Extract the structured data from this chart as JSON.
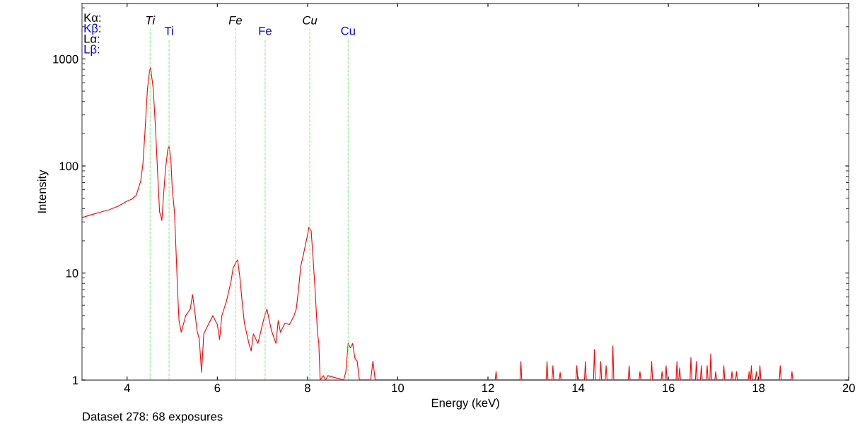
{
  "chart_data": {
    "type": "line",
    "xlabel": "Energy (keV)",
    "ylabel": "Intensity",
    "log": "y",
    "xlim": [
      3,
      20
    ],
    "ylim": [
      1,
      3300
    ],
    "xticks": [
      4,
      6,
      8,
      10,
      12,
      14,
      16,
      18,
      20
    ],
    "yticks": [
      1,
      10,
      100,
      1000
    ],
    "grid": false,
    "marker": "none",
    "line_style": "solid",
    "series": [
      {
        "color": "#ff0000",
        "x": [
          3.0,
          3.2,
          3.4,
          3.6,
          3.8,
          4.0,
          4.1,
          4.2,
          4.3,
          4.35,
          4.4,
          4.45,
          4.5,
          4.52,
          4.58,
          4.63,
          4.68,
          4.72,
          4.75,
          4.77,
          4.8,
          4.85,
          4.9,
          4.93,
          4.97,
          5.0,
          5.05,
          5.08,
          5.12,
          5.15,
          5.2,
          5.3,
          5.4,
          5.45,
          5.5,
          5.55,
          5.6,
          5.65,
          5.7,
          5.8,
          5.9,
          6.0,
          6.05,
          6.1,
          6.2,
          6.3,
          6.35,
          6.4,
          6.45,
          6.5,
          6.55,
          6.6,
          6.7,
          6.75,
          6.8,
          6.9,
          7.0,
          7.05,
          7.1,
          7.2,
          7.3,
          7.35,
          7.4,
          7.5,
          7.6,
          7.7,
          7.75,
          7.8,
          7.85,
          7.9,
          8.0,
          8.03,
          8.08,
          8.12,
          8.17,
          8.22,
          8.25,
          8.28,
          8.35,
          8.4,
          8.45,
          8.8,
          8.85,
          8.9,
          8.95,
          9.0,
          9.05,
          9.1,
          9.15,
          9.4,
          9.45,
          9.5,
          12.16,
          12.18,
          12.2,
          12.71,
          12.73,
          12.75,
          13.29,
          13.31,
          13.33,
          13.42,
          13.44,
          13.46,
          13.58,
          13.6,
          13.62,
          13.95,
          13.97,
          13.99,
          14.14,
          14.16,
          14.18,
          14.34,
          14.36,
          14.38,
          14.48,
          14.5,
          14.52,
          14.6,
          14.62,
          14.64,
          14.75,
          14.77,
          14.79,
          15.11,
          15.13,
          15.15,
          15.35,
          15.37,
          15.39,
          15.61,
          15.63,
          15.65,
          15.84,
          15.86,
          15.88,
          15.93,
          15.95,
          15.97,
          16.17,
          16.19,
          16.21,
          16.23,
          16.25,
          16.27,
          16.48,
          16.5,
          16.52,
          16.6,
          16.62,
          16.64,
          16.71,
          16.73,
          16.75,
          16.84,
          16.86,
          16.88,
          16.92,
          16.94,
          16.96,
          17.03,
          17.05,
          17.07,
          17.21,
          17.23,
          17.25,
          17.39,
          17.41,
          17.43,
          17.49,
          17.51,
          17.53,
          17.77,
          17.79,
          17.81,
          17.82,
          17.84,
          17.86,
          17.93,
          17.95,
          17.97,
          18.01,
          18.03,
          18.05,
          18.46,
          18.48,
          18.5,
          18.72,
          18.74,
          18.76
        ],
        "values": [
          33,
          35,
          37,
          39,
          42,
          47,
          49,
          53,
          72,
          104,
          222,
          520,
          785,
          835,
          520,
          222,
          80,
          37,
          34,
          31,
          48,
          93,
          141,
          154,
          114,
          62,
          37,
          18,
          6.7,
          3.6,
          2.8,
          4.0,
          4.6,
          6.3,
          4.4,
          2.9,
          2.4,
          1.18,
          2.7,
          3.3,
          4.0,
          3.3,
          2.4,
          4.0,
          5.4,
          8.2,
          11.1,
          12.3,
          13.3,
          9.1,
          5.4,
          3.4,
          2.2,
          1.87,
          2.7,
          2.2,
          3.3,
          4.0,
          4.6,
          2.9,
          2.2,
          3.6,
          2.8,
          3.4,
          3.3,
          4.0,
          4.6,
          7.0,
          11.6,
          14.3,
          22.7,
          26.8,
          24.9,
          14.3,
          6.7,
          2.8,
          2.2,
          1.0,
          1.1,
          1.0,
          1.1,
          1.0,
          1.2,
          2.2,
          2.0,
          2.2,
          1.6,
          1.5,
          1.0,
          1.0,
          1.5,
          1.0,
          1,
          1.2,
          1,
          1,
          1.49,
          1,
          1,
          1.49,
          1,
          1,
          1.36,
          1,
          1,
          1.18,
          1,
          1,
          1.36,
          1,
          1,
          1.49,
          1,
          1,
          1.93,
          1,
          1,
          1.49,
          1,
          1,
          1.36,
          1,
          1,
          2.08,
          1,
          1,
          1.36,
          1,
          1,
          1.2,
          1,
          1,
          1.49,
          1,
          1,
          1.2,
          1,
          1,
          1.36,
          1,
          1,
          1.49,
          1,
          1,
          1.3,
          1,
          1,
          1.63,
          1,
          1,
          1.49,
          1,
          1,
          1.36,
          1,
          1,
          1.36,
          1,
          1,
          1.76,
          1,
          1,
          1.2,
          1,
          1,
          1.36,
          1,
          1,
          1.2,
          1,
          1,
          1.2,
          1,
          1,
          1.2,
          1,
          1,
          1.36,
          1,
          1,
          1.2,
          1,
          1,
          1.36,
          1,
          1,
          1.36,
          1,
          1,
          1.2,
          1
        ]
      }
    ],
    "ref_lines": [
      {
        "axis": "x",
        "value": 4.51,
        "label": "Ti",
        "color": "#90ee90",
        "line_style": "dashed"
      },
      {
        "axis": "x",
        "value": 4.93,
        "label": "Ti",
        "color": "#90ee90",
        "line_style": "dashed"
      },
      {
        "axis": "x",
        "value": 6.4,
        "label": "Fe",
        "color": "#90ee90",
        "line_style": "dashed"
      },
      {
        "axis": "x",
        "value": 7.06,
        "label": "Fe",
        "color": "#90ee90",
        "line_style": "dashed"
      },
      {
        "axis": "x",
        "value": 8.05,
        "label": "Cu",
        "color": "#90ee90",
        "line_style": "dashed"
      },
      {
        "axis": "x",
        "value": 8.9,
        "label": "Cu",
        "color": "#90ee90",
        "line_style": "dashed"
      }
    ],
    "annotations": [
      "Kα:",
      "Kβ:",
      "Lα:",
      "Lβ:",
      "Dataset 278: 68 exposures"
    ]
  }
}
